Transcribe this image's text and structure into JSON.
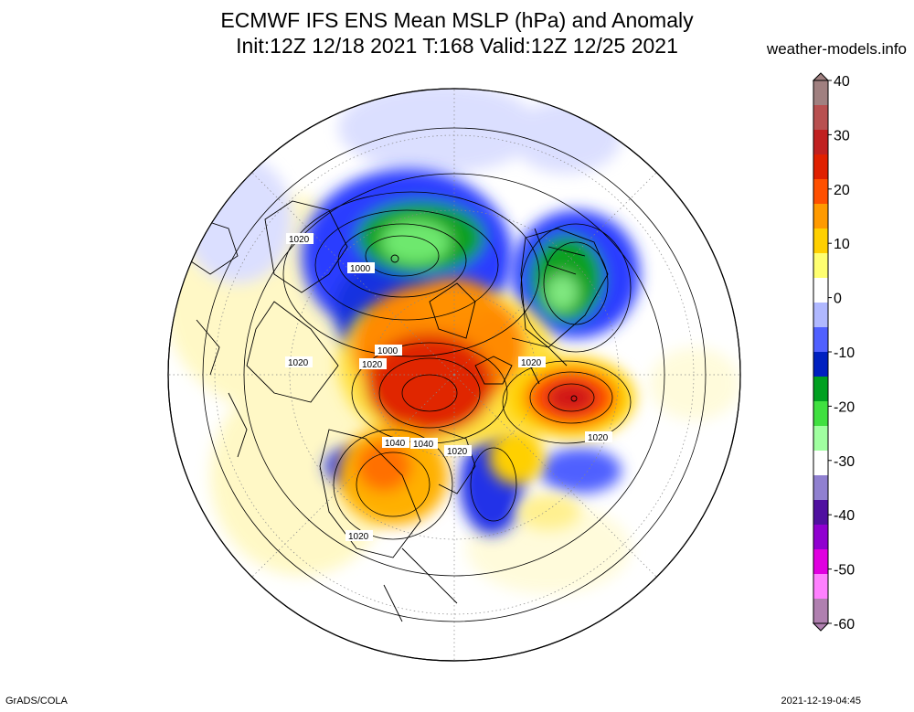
{
  "header": {
    "title_line1": "ECMWF IFS ENS Mean MSLP (hPa) and Anomaly",
    "title_line2": "Init:12Z 12/18 2021  T:168 Valid:12Z 12/25 2021",
    "site": "weather-models.info"
  },
  "footer": {
    "credit": "GrADS/COLA",
    "timestamp": "2021-12-19-04:45"
  },
  "colorbar": {
    "labels": [
      "40",
      "30",
      "20",
      "10",
      "0",
      "-10",
      "-20",
      "-30",
      "-40",
      "-50",
      "-60"
    ],
    "colors": [
      "#a08080",
      "#b85050",
      "#c02020",
      "#e02000",
      "#ff5000",
      "#ff9a00",
      "#ffd000",
      "#ffff70",
      "#ffffff",
      "#b0b8ff",
      "#5060ff",
      "#0020c0",
      "#00a020",
      "#40e040",
      "#a0ffa0",
      "#ffffff",
      "#9080d0",
      "#5010a0",
      "#9000d0",
      "#e000e0",
      "#ff80ff",
      "#b080b0"
    ]
  },
  "contour_labels": [
    "1020",
    "1000",
    "1020",
    "1000",
    "1020",
    "1020",
    "1020",
    "1040",
    "1040",
    "1020",
    "1020"
  ],
  "map": {
    "projection": "north-polar-stereographic"
  }
}
